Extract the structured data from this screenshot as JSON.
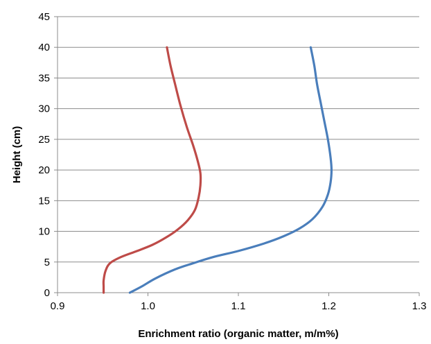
{
  "chart_data": {
    "type": "line",
    "title": "",
    "xlabel": "Enrichment ratio (organic matter, m/m%)",
    "ylabel": "Height (cm)",
    "xlim": [
      0.9,
      1.3
    ],
    "ylim": [
      0,
      45
    ],
    "x_ticks": [
      "0.9",
      "1.0",
      "1.1",
      "1.2",
      "1.3"
    ],
    "y_ticks": [
      "0",
      "5",
      "10",
      "15",
      "20",
      "25",
      "30",
      "35",
      "40",
      "45"
    ],
    "grid": "horizontal",
    "legend": "none",
    "series": [
      {
        "color": "#4a7ebb",
        "points": [
          [
            0.98,
            0
          ],
          [
            0.993,
            1
          ],
          [
            1.008,
            2.3
          ],
          [
            1.03,
            3.8
          ],
          [
            1.05,
            4.8
          ],
          [
            1.072,
            5.8
          ],
          [
            1.1,
            6.8
          ],
          [
            1.128,
            8.0
          ],
          [
            1.15,
            9.2
          ],
          [
            1.168,
            10.5
          ],
          [
            1.182,
            12.0
          ],
          [
            1.193,
            14.0
          ],
          [
            1.199,
            16.0
          ],
          [
            1.202,
            18.0
          ],
          [
            1.203,
            20.0
          ],
          [
            1.202,
            22.0
          ],
          [
            1.199,
            25.0
          ],
          [
            1.195,
            28.0
          ],
          [
            1.191,
            31.0
          ],
          [
            1.187,
            34.0
          ],
          [
            1.184,
            37.0
          ],
          [
            1.18,
            40.0
          ]
        ]
      },
      {
        "color": "#be4b48",
        "points": [
          [
            0.951,
            0
          ],
          [
            0.951,
            1
          ],
          [
            0.951,
            2
          ],
          [
            0.953,
            3.5
          ],
          [
            0.958,
            4.8
          ],
          [
            0.97,
            5.8
          ],
          [
            0.988,
            6.8
          ],
          [
            1.005,
            7.8
          ],
          [
            1.02,
            9.0
          ],
          [
            1.033,
            10.3
          ],
          [
            1.044,
            11.8
          ],
          [
            1.052,
            13.5
          ],
          [
            1.056,
            15.5
          ],
          [
            1.058,
            17.5
          ],
          [
            1.058,
            19.5
          ],
          [
            1.055,
            21.5
          ],
          [
            1.05,
            24.0
          ],
          [
            1.043,
            27.0
          ],
          [
            1.036,
            30.5
          ],
          [
            1.03,
            34.0
          ],
          [
            1.025,
            37.0
          ],
          [
            1.021,
            40.0
          ]
        ]
      }
    ]
  }
}
